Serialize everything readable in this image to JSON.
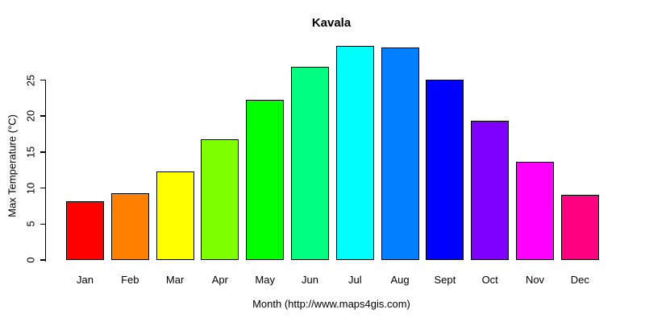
{
  "chart_data": {
    "type": "bar",
    "title": "Kavala",
    "xlabel": "Month (http://www.maps4gis.com)",
    "ylabel": "Max Temperature (°C)",
    "categories": [
      "Jan",
      "Feb",
      "Mar",
      "Apr",
      "May",
      "Jun",
      "Jul",
      "Aug",
      "Sept",
      "Oct",
      "Nov",
      "Dec"
    ],
    "values": [
      8.2,
      9.3,
      12.3,
      16.8,
      22.3,
      26.9,
      29.7,
      29.5,
      25.1,
      19.3,
      13.6,
      9.1
    ],
    "bar_colors": [
      "#FF0000",
      "#FF8000",
      "#FFFF00",
      "#80FF00",
      "#00FF00",
      "#00FF80",
      "#00FFFF",
      "#0080FF",
      "#0000FF",
      "#8000FF",
      "#FF00FF",
      "#FF0080"
    ],
    "bar_border_color": "#000000",
    "yticks": [
      0,
      5,
      10,
      15,
      20,
      25
    ],
    "ylim": [
      0,
      25
    ],
    "grid": false,
    "legend_position": "none",
    "background_color": "#FFFFFF",
    "text_color": "#000000"
  }
}
